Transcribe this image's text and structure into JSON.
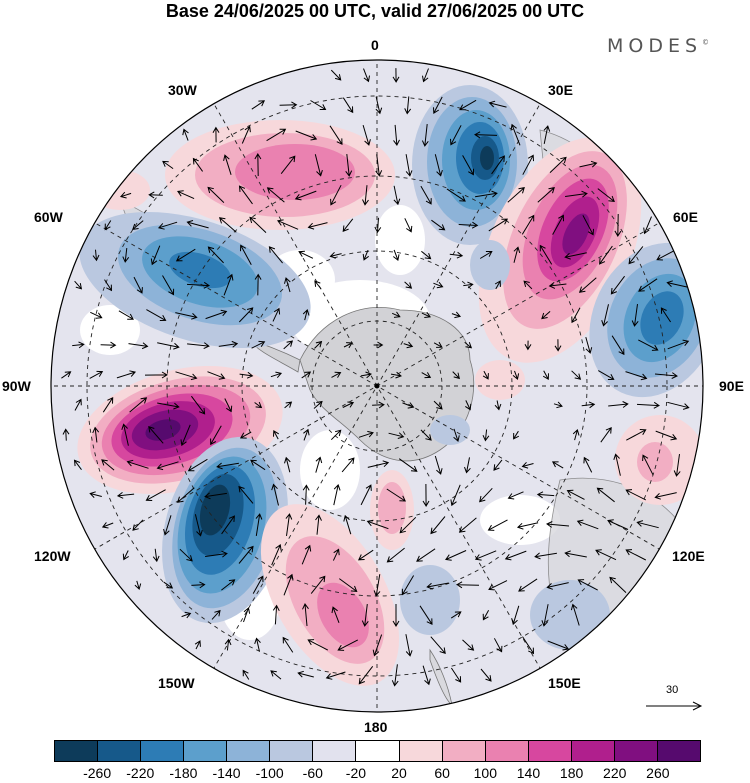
{
  "title": "Base 24/06/2025 00 UTC, valid 27/06/2025 00 UTC",
  "brand": "MODES",
  "brand_mark": "©",
  "map": {
    "projection": "south-polar-stereographic",
    "longitude_labels": {
      "top": "0",
      "top_right": "30E",
      "right_upper": "60E",
      "right": "90E",
      "right_lower": "120E",
      "bottom_right": "150E",
      "bottom": "180",
      "bottom_left": "150W",
      "left_lower": "120W",
      "left": "90W",
      "left_upper": "60W",
      "top_left": "30W"
    },
    "reference_vector": {
      "label": "30",
      "icon": "arrow-right-icon"
    },
    "anomaly_blobs": [
      {
        "name": "positive-anomaly-mid-atlantic",
        "sign": "+",
        "level": 140
      },
      {
        "name": "negative-anomaly-south-atlantic-east",
        "sign": "-",
        "level": -220
      },
      {
        "name": "positive-anomaly-south-africa",
        "sign": "+",
        "level": 260
      },
      {
        "name": "negative-anomaly-indian-ocean",
        "sign": "-",
        "level": -180
      },
      {
        "name": "negative-anomaly-south-america",
        "sign": "-",
        "level": -140
      },
      {
        "name": "positive-anomaly-pacific-east",
        "sign": "+",
        "level": 260
      },
      {
        "name": "negative-anomaly-pacific-south",
        "sign": "-",
        "level": -260
      },
      {
        "name": "positive-anomaly-pacific-central",
        "sign": "+",
        "level": 140
      },
      {
        "name": "positive-anomaly-ross-sea",
        "sign": "+",
        "level": 100
      }
    ]
  },
  "colorbar": {
    "colors": [
      "#0d3b5a",
      "#16598a",
      "#2d7cb5",
      "#5c9fcc",
      "#8db3d8",
      "#bac8e0",
      "#e2e2ee",
      "#ffffff",
      "#f7d8db",
      "#f2aec3",
      "#ea81b0",
      "#d7479f",
      "#b01f8d",
      "#800f80",
      "#560a6e"
    ],
    "tick_labels": [
      "-260",
      "-220",
      "-180",
      "-140",
      "-100",
      "-60",
      "-20",
      "20",
      "60",
      "100",
      "140",
      "180",
      "220",
      "260"
    ]
  }
}
